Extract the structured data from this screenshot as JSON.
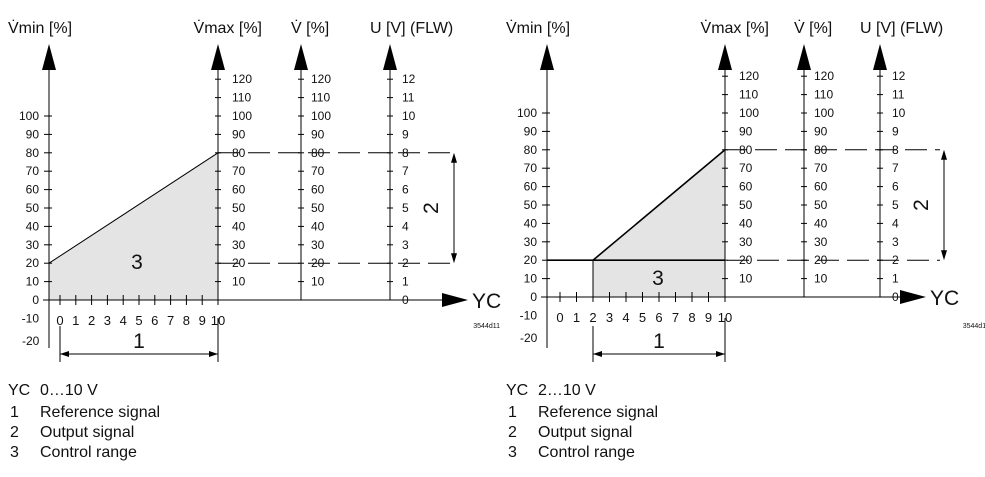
{
  "diagrams": [
    {
      "headers": {
        "vmin": "V̇min [%]",
        "vmax": "V̇max [%]",
        "v": "V̇ [%]",
        "u": "U [V] (FLW)"
      },
      "vmin_ticks": [
        "100",
        "90",
        "80",
        "70",
        "60",
        "50",
        "40",
        "30",
        "20",
        "10",
        "0",
        "-10",
        "-20"
      ],
      "percent_ticks": [
        "120",
        "110",
        "100",
        "90",
        "80",
        "70",
        "60",
        "50",
        "40",
        "30",
        "20",
        "10"
      ],
      "volt_ticks": [
        "12",
        "11",
        "10",
        "9",
        "8",
        "7",
        "6",
        "5",
        "4",
        "3",
        "2",
        "1",
        "0"
      ],
      "x_ticks": [
        "0",
        "1",
        "2",
        "3",
        "4",
        "5",
        "6",
        "7",
        "8",
        "9",
        "10"
      ],
      "x_axis_label": "YC",
      "markers": {
        "reference": "1",
        "output": "2",
        "control": "3"
      },
      "drawing_code": "3544d11",
      "caption": {
        "signal_code": "YC",
        "signal_range": "0…10 V"
      },
      "control_range": {
        "yc_start": 0,
        "yc_end": 10,
        "percent_start": 20,
        "percent_end": 80
      }
    },
    {
      "headers": {
        "vmin": "V̇min [%]",
        "vmax": "V̇max [%]",
        "v": "V̇ [%]",
        "u": "U [V] (FLW)"
      },
      "vmin_ticks": [
        "100",
        "90",
        "80",
        "70",
        "60",
        "50",
        "40",
        "30",
        "20",
        "10",
        "0",
        "-10",
        "-20"
      ],
      "percent_ticks": [
        "120",
        "110",
        "100",
        "90",
        "80",
        "70",
        "60",
        "50",
        "40",
        "30",
        "20",
        "10"
      ],
      "volt_ticks": [
        "12",
        "11",
        "10",
        "9",
        "8",
        "7",
        "6",
        "5",
        "4",
        "3",
        "2",
        "1",
        "0"
      ],
      "x_ticks": [
        "0",
        "1",
        "2",
        "3",
        "4",
        "5",
        "6",
        "7",
        "8",
        "9",
        "10"
      ],
      "x_axis_label": "YC",
      "markers": {
        "reference": "1",
        "output": "2",
        "control": "3"
      },
      "drawing_code": "3544d12",
      "caption": {
        "signal_code": "YC",
        "signal_range": "2…10 V"
      },
      "control_range": {
        "yc_start": 2,
        "yc_end": 10,
        "percent_start": 20,
        "percent_end": 80
      }
    }
  ],
  "legend": {
    "items": [
      {
        "number": "1",
        "label": "Reference signal"
      },
      {
        "number": "2",
        "label": "Output signal"
      },
      {
        "number": "3",
        "label": "Control range"
      }
    ]
  },
  "colors": {
    "fill": "#e4e4e4",
    "line": "#000000"
  }
}
